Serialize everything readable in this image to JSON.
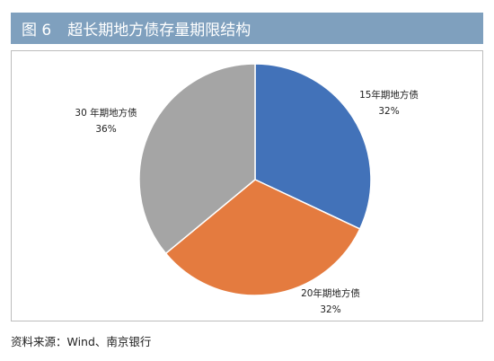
{
  "figure": {
    "number": "图 6",
    "title": "超长期地方债存量期限结构"
  },
  "chart_data": {
    "type": "pie",
    "categories": [
      "15年期地方债",
      "20年期地方债",
      "30 年期地方债"
    ],
    "values": [
      32,
      32,
      36
    ],
    "value_labels": [
      "32%",
      "32%",
      "36%"
    ],
    "colors": [
      "#4272b9",
      "#e47b3f",
      "#a5a5a5"
    ],
    "start_angle_deg": 0,
    "direction": "clockwise",
    "legend": "none"
  },
  "source": "资料来源：Wind、南京银行"
}
